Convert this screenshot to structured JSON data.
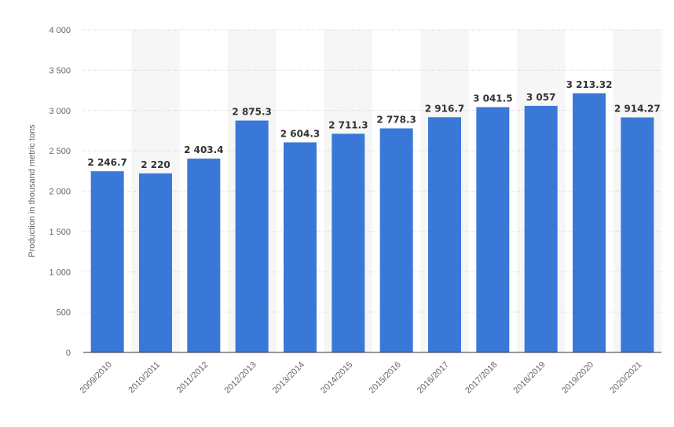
{
  "chart_data": {
    "type": "bar",
    "title": "",
    "xlabel": "",
    "ylabel": "Production in thousand metric tons",
    "categories": [
      "2009/2010",
      "2010/2011",
      "2011/2012",
      "2012/2013",
      "2013/2014",
      "2014/2015",
      "2015/2016",
      "2016/2017",
      "2017/2018",
      "2018/2019",
      "2019/2020",
      "2020/2021"
    ],
    "values": [
      2246.7,
      2220,
      2403.4,
      2875.3,
      2604.3,
      2711.3,
      2778.3,
      2916.7,
      3041.5,
      3057,
      3213.32,
      2914.27
    ],
    "value_labels": [
      "2 246.7",
      "2 220",
      "2 403.4",
      "2 875.3",
      "2 604.3",
      "2 711.3",
      "2 778.3",
      "2 916.7",
      "3 041.5",
      "3 057",
      "3 213.32",
      "2 914.27"
    ],
    "ylim": [
      0,
      4000
    ],
    "y_ticks": [
      0,
      500,
      1000,
      1500,
      2000,
      2500,
      3000,
      3500,
      4000
    ],
    "y_tick_labels": [
      "0",
      "500",
      "1 000",
      "1 500",
      "2 000",
      "2 500",
      "3 000",
      "3 500",
      "4 000"
    ],
    "grid": true,
    "grid_style": "dotted",
    "alternating_column_shading": true,
    "legend": "none",
    "colors": {
      "bar": "#3a78d8",
      "column_shade": "#f6f6f6",
      "grid": "#cccccc",
      "axis": "#333333",
      "tick_text": "#666666",
      "label_text": "#333333"
    }
  }
}
